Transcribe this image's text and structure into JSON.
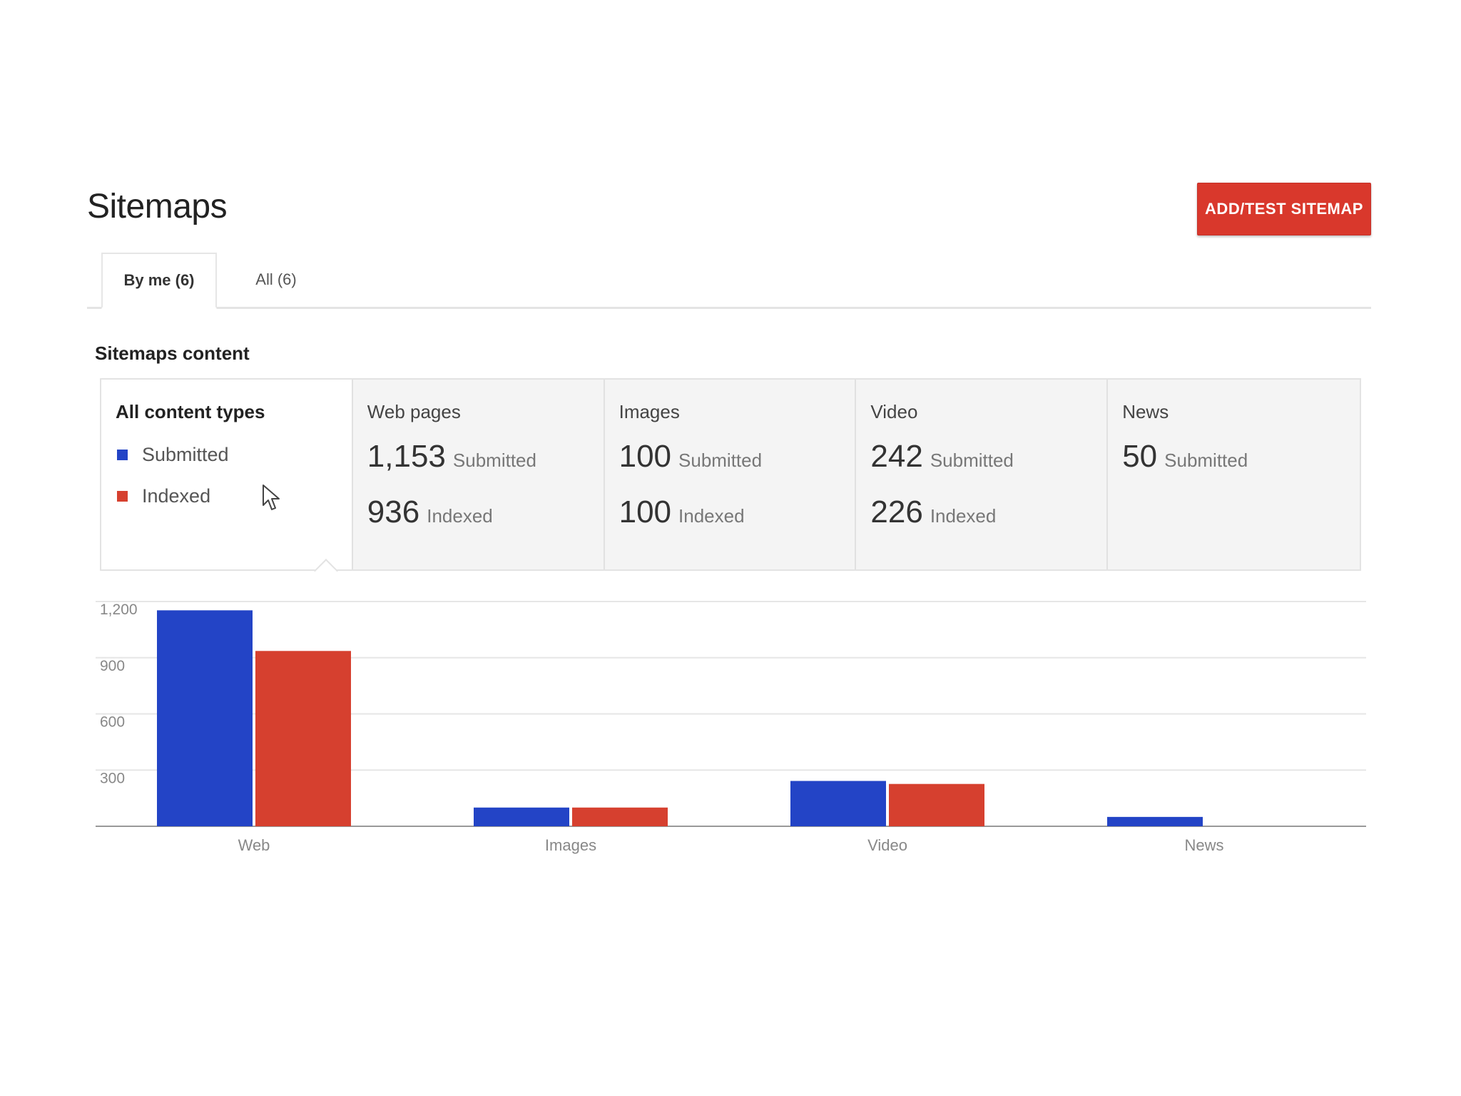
{
  "header": {
    "title": "Sitemaps",
    "add_button_label": "ADD/TEST SITEMAP"
  },
  "tabs": [
    {
      "label": "By me (6)",
      "active": true
    },
    {
      "label": "All (6)",
      "active": false
    }
  ],
  "section": {
    "label": "Sitemaps content"
  },
  "summary": {
    "all_types": {
      "title": "All content types",
      "legend": [
        {
          "label": "Submitted",
          "color": "#2344c6"
        },
        {
          "label": "Indexed",
          "color": "#d6402f"
        }
      ]
    },
    "cards": [
      {
        "title": "Web pages",
        "submitted": "1,153",
        "submitted_label": "Submitted",
        "indexed": "936",
        "indexed_label": "Indexed"
      },
      {
        "title": "Images",
        "submitted": "100",
        "submitted_label": "Submitted",
        "indexed": "100",
        "indexed_label": "Indexed"
      },
      {
        "title": "Video",
        "submitted": "242",
        "submitted_label": "Submitted",
        "indexed": "226",
        "indexed_label": "Indexed"
      },
      {
        "title": "News",
        "submitted": "50",
        "submitted_label": "Submitted"
      }
    ]
  },
  "chart_data": {
    "type": "bar",
    "categories": [
      "Web",
      "Images",
      "Video",
      "News"
    ],
    "series": [
      {
        "name": "Submitted",
        "values": [
          1153,
          100,
          242,
          50
        ],
        "color": "#2344c6"
      },
      {
        "name": "Indexed",
        "values": [
          936,
          100,
          226,
          0
        ],
        "color": "#d6402f"
      }
    ],
    "ylim": [
      0,
      1200
    ],
    "yticks": [
      300,
      600,
      900,
      1200
    ],
    "ytick_labels": [
      "300",
      "600",
      "900",
      "1,200"
    ],
    "grid": true,
    "legend": "none",
    "title": "",
    "xlabel": "",
    "ylabel": ""
  }
}
